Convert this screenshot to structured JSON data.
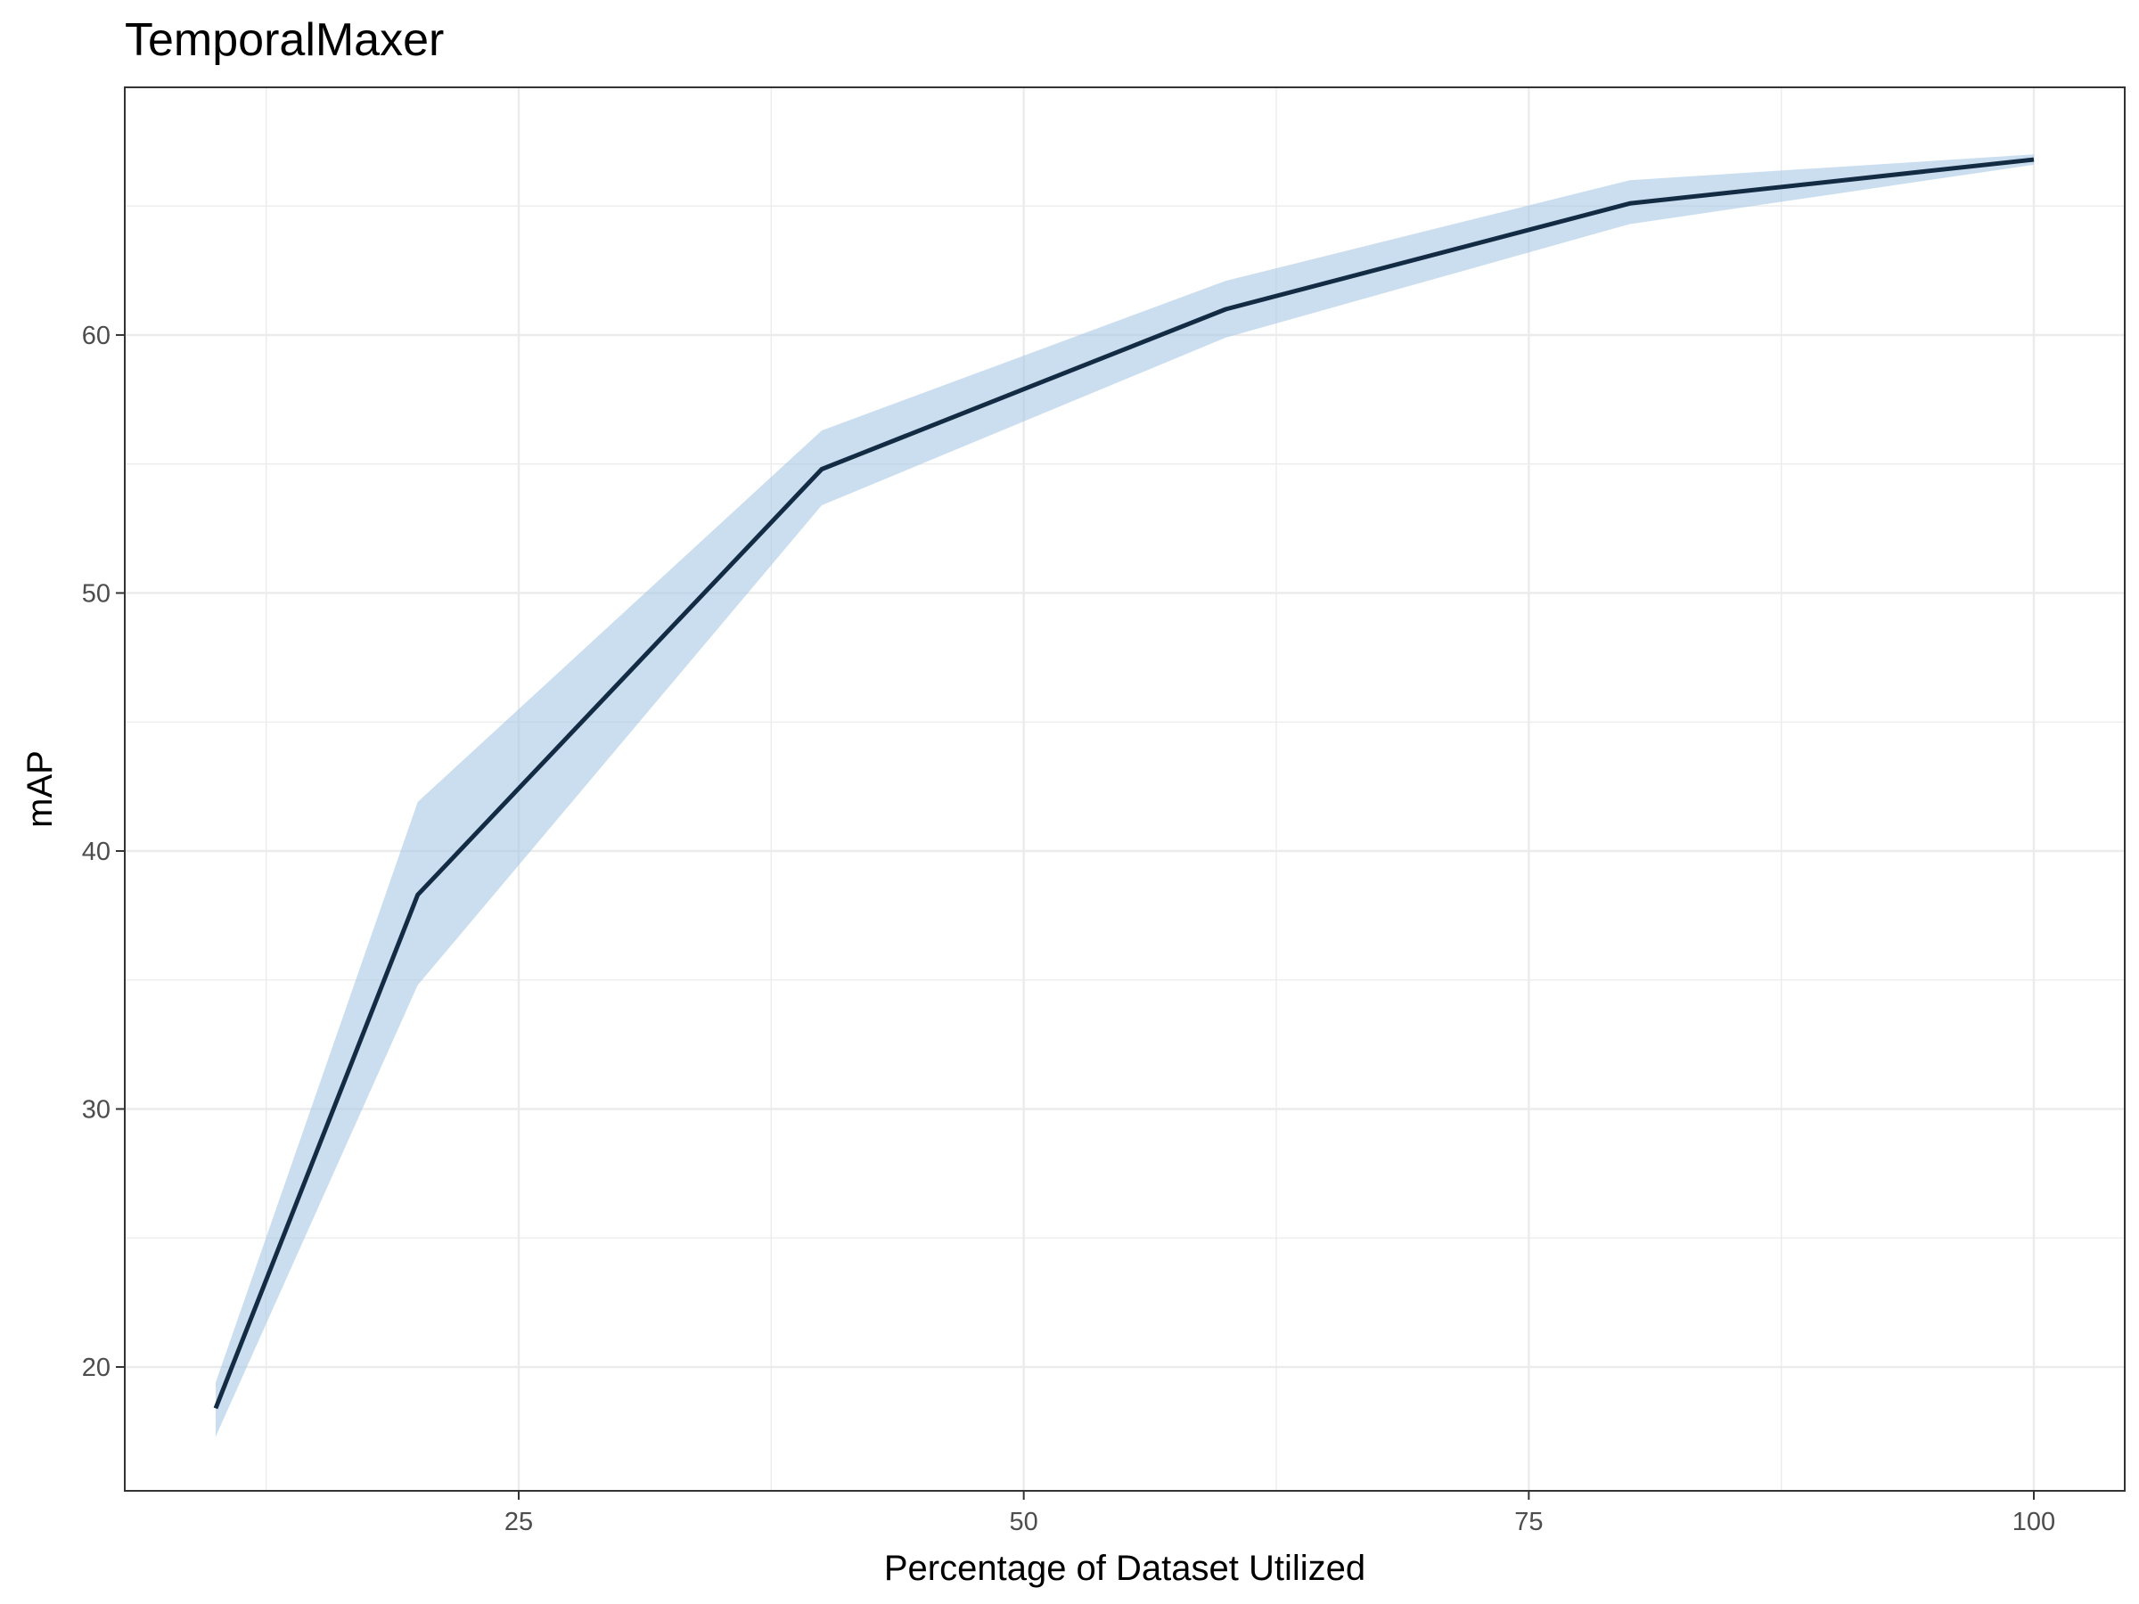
{
  "chart_data": {
    "type": "line",
    "title": "TemporalMaxer",
    "xlabel": "Percentage of Dataset Utilized",
    "ylabel": "mAP",
    "xlim": [
      5.5,
      104.5
    ],
    "ylim": [
      15.2,
      69.6
    ],
    "x_ticks": [
      25,
      50,
      75,
      100
    ],
    "x_minor_ticks": [
      12.5,
      37.5,
      62.5,
      87.5
    ],
    "y_ticks": [
      20,
      30,
      40,
      50,
      60
    ],
    "y_minor_ticks": [
      25,
      35,
      45,
      55,
      65
    ],
    "grid": true,
    "series": [
      {
        "x": [
          10,
          20,
          40,
          60,
          80,
          100
        ],
        "y": [
          18.4,
          38.3,
          54.8,
          61.0,
          65.1,
          66.8
        ],
        "lower": [
          17.3,
          34.8,
          53.4,
          59.9,
          64.3,
          66.6
        ],
        "upper": [
          19.4,
          41.9,
          56.3,
          62.1,
          66.0,
          67.0
        ]
      }
    ],
    "colors": {
      "line": "#132b43",
      "band": "#a6c8e6",
      "grid": "#ebebeb",
      "border": "#333333"
    }
  }
}
